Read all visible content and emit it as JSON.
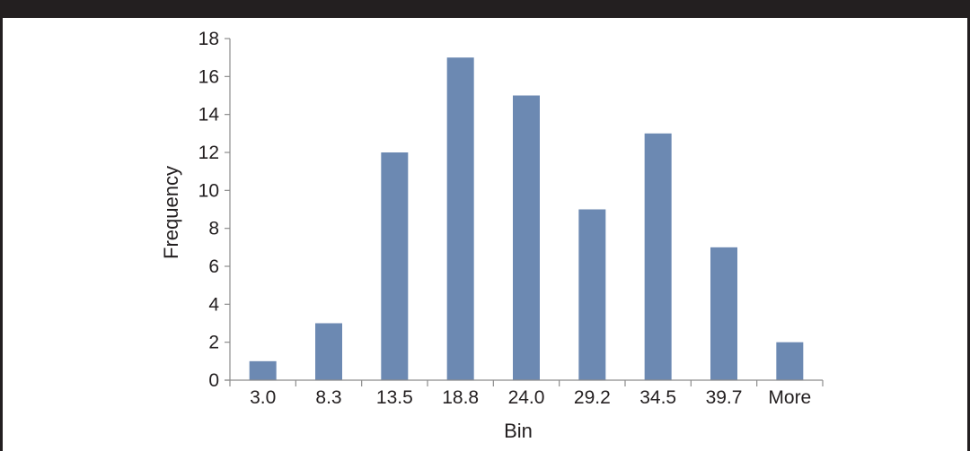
{
  "chart_data": {
    "type": "bar",
    "title": "",
    "xlabel": "Bin",
    "ylabel": "Frequency",
    "categories": [
      "3.0",
      "8.3",
      "13.5",
      "18.8",
      "24.0",
      "29.2",
      "34.5",
      "39.7",
      "More"
    ],
    "values": [
      1,
      3,
      12,
      17,
      15,
      9,
      13,
      7,
      2
    ],
    "ylim": [
      0,
      18
    ],
    "yticks": [
      0,
      2,
      4,
      6,
      8,
      10,
      12,
      14,
      16,
      18
    ],
    "grid": false,
    "legend": "none",
    "bar_color": "#6c89b2",
    "axis_color": "#8c8c8c",
    "text_color": "#231f20"
  }
}
